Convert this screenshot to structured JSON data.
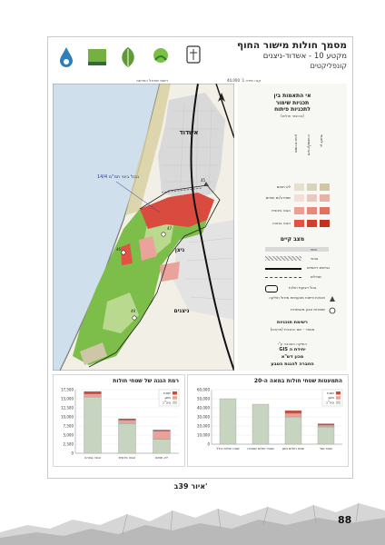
{
  "header": {
    "title": "מסמך חולות מישור החוף",
    "subtitle": "מקטע 10 - אשדוד-ניצנים",
    "subtitle2": "קונפליקטים",
    "scale": "קנה מידה 1: 40,000",
    "source": "רשות ישראל החדשה",
    "logos": [
      "ministry-emblem-icon",
      "nature-authority-icon",
      "leaf-logo-icon",
      "green-logo-icon",
      "water-drop-logo-icon"
    ]
  },
  "map": {
    "city_label": "אשדוד",
    "boundary_label": "גבול בינוי תמ\"מ 14/4",
    "nitzan_label": "ניצן",
    "nitzanim_label": "ניצנים",
    "markers": [
      "45",
      "47",
      "46",
      "49"
    ],
    "colors": {
      "sea": "#cfe0ec",
      "sand": "#f1efe6",
      "built": "#d9d9d9",
      "green": "#7dbd49",
      "light_green": "#b9d98f",
      "red": "#d94b3e",
      "pink": "#eaa39b"
    }
  },
  "legend": {
    "heading1": "אי התאמות בין",
    "heading2": "תכניות שימור",
    "heading3": "לתכניות פיתוח",
    "heading_note": "(בהיבטי חולות)",
    "columns": [
      "שמורת טבע",
      "פארק/שמורה",
      "גן לאומי"
    ],
    "rows": [
      {
        "label": "לא תואם",
        "colors": [
          "#e4e1cf",
          "#d9d3bd",
          "#cfc6a8"
        ]
      },
      {
        "label": "שמירה/ים חופים",
        "colors": [
          "#f2dfdb",
          "#eac8c1",
          "#e3b2a8"
        ]
      },
      {
        "label": "הגנה בינונית",
        "colors": [
          "#eca093",
          "#e68979",
          "#de7160"
        ]
      },
      {
        "label": "הגנה גבוהה",
        "colors": [
          "#e05443",
          "#d23f2f",
          "#c02f21"
        ]
      }
    ],
    "existing_heading": "מצב קיים",
    "existing_items": [
      "בינוי",
      "צבאי",
      "כבישים ראשיים",
      "שבילים",
      "גבול רצועת חולות"
    ],
    "symbols": [
      "תכניות פיתוח מטעמיות מודול חולקה",
      "שמורות טבע מאושרות"
    ],
    "plans_heading": "רשימת תוכניות",
    "plans_text": "מספר - שם התכנית (פרטים)",
    "credit1": "הופקה השכבה ע\"י",
    "credit2": "יחידת ה GIS",
    "credit3": "מכון דש\"א",
    "credit4": "החברה להגנת הטבע"
  },
  "chart_data": [
    {
      "type": "bar",
      "title": "רמת הגנה של שטחי חולות",
      "categories": [
        "הגנה גבוהה",
        "הגנה בינונית",
        "לא תואם"
      ],
      "series": [
        {
          "name": "סה\"כ",
          "values": [
            15500,
            8200,
            3800
          ],
          "color": "#c7d4c0"
        },
        {
          "name": "",
          "values": [
            800,
            900,
            2300
          ],
          "color": "#e6a39b"
        },
        {
          "name": "",
          "values": [
            700,
            400,
            300
          ],
          "color": "#c94b3d"
        }
      ],
      "y_ticks": [
        "0",
        "2,500",
        "5,000",
        "7,500",
        "10,000",
        "12,500",
        "15,000",
        "17,500"
      ],
      "ylim": [
        0,
        17500
      ],
      "legend": [
        "שטח",
        "מוגן",
        "סה\"כ"
      ]
    },
    {
      "type": "bar",
      "title": "התמעטות שטחי חולות במאה ה-20",
      "categories": [
        "שטח חולות כולל",
        "שטחי חולות שנותרו",
        "שטח חולות מוגן",
        "שטח פנוי"
      ],
      "series": [
        {
          "name": "",
          "values": [
            50000,
            44000,
            30000,
            19000
          ],
          "color": "#c7d4c0"
        },
        {
          "name": "",
          "values": [
            0,
            0,
            4000,
            2000
          ],
          "color": "#e6a39b"
        },
        {
          "name": "",
          "values": [
            0,
            0,
            3000,
            1500
          ],
          "color": "#c94b3d"
        }
      ],
      "y_ticks": [
        "0",
        "10,000",
        "20,000",
        "30,000",
        "40,000",
        "50,000",
        "60,000"
      ],
      "ylim": [
        0,
        60000
      ],
      "legend": [
        "שטח",
        "מוגן",
        "סה\"כ"
      ]
    }
  ],
  "caption": "איור 39ב'",
  "page_number": "88"
}
